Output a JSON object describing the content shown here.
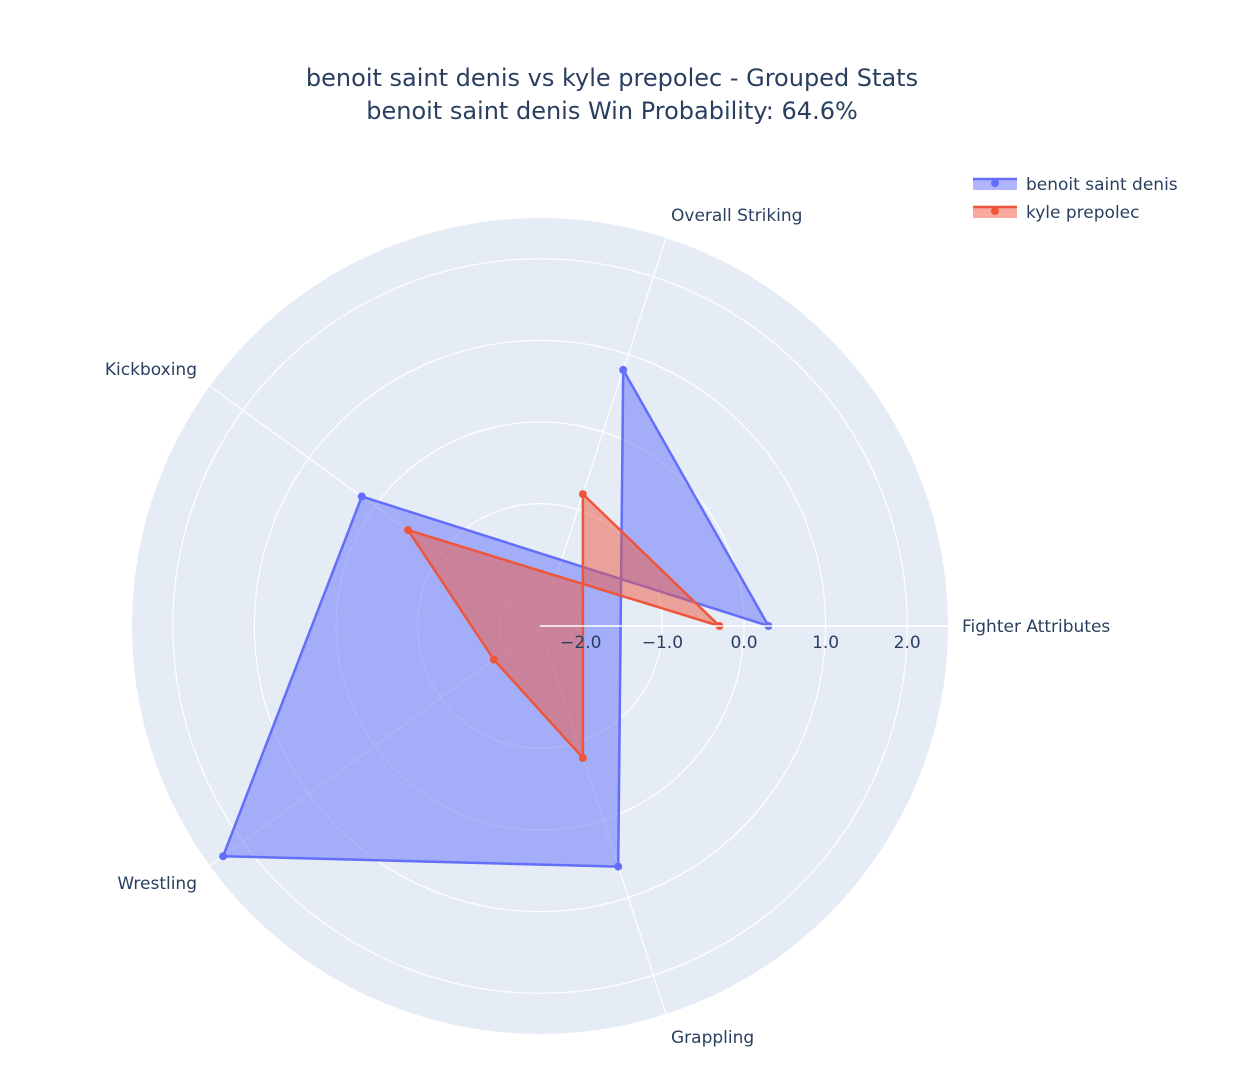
{
  "chart_data": {
    "type": "radar",
    "title": "benoit saint denis vs kyle prepolec - Grouped Stats",
    "subtitle": "benoit saint denis Win Probability: 64.6%",
    "categories": [
      "Fighter Attributes",
      "Overall Striking",
      "Grappling",
      "Wrestling",
      "Kickboxing"
    ],
    "radial_range": [
      -2.5,
      2.5
    ],
    "radial_ticks": [
      -2.0,
      -1.0,
      0.0,
      1.0,
      2.0
    ],
    "radial_tick_labels": [
      "−2.0",
      "−1.0",
      "0.0",
      "1.0",
      "2.0"
    ],
    "grid": true,
    "legend_position": "top-right",
    "series": [
      {
        "name": "benoit saint denis",
        "color": "#636efa",
        "values": [
          0.3,
          0.8,
          0.6,
          2.3,
          0.2
        ]
      },
      {
        "name": "kyle prepolec",
        "color": "#ef553b",
        "values": [
          -0.3,
          -0.8,
          -0.8,
          -1.8,
          -0.5
        ]
      }
    ]
  }
}
